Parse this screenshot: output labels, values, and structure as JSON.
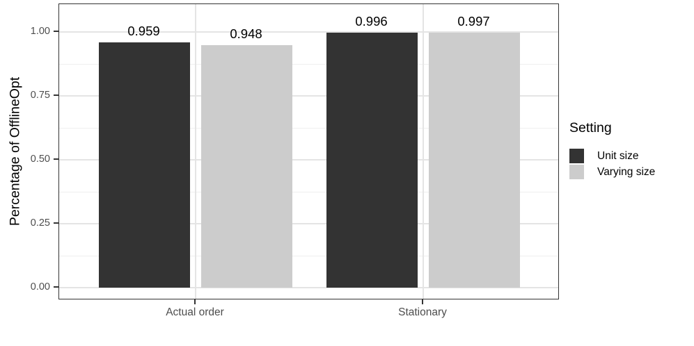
{
  "chart_data": {
    "type": "bar",
    "subtype": "grouped-vertical",
    "title": "",
    "xlabel": "",
    "ylabel": "Percentage of OfflineOpt",
    "categories": [
      "Actual order",
      "Stationary"
    ],
    "series": [
      {
        "name": "Unit size",
        "color": "#333333",
        "values": [
          0.959,
          0.996
        ],
        "value_labels": [
          "0.959",
          "0.996"
        ]
      },
      {
        "name": "Varying size",
        "color": "#cccccc",
        "values": [
          0.948,
          0.997
        ],
        "value_labels": [
          "0.948",
          "0.997"
        ]
      }
    ],
    "ylim": [
      0,
      1.05
    ],
    "yticks": [
      {
        "value": 0.0,
        "label": "0.00"
      },
      {
        "value": 0.25,
        "label": "0.25"
      },
      {
        "value": 0.5,
        "label": "0.50"
      },
      {
        "value": 0.75,
        "label": "0.75"
      },
      {
        "value": 1.0,
        "label": "1.00"
      }
    ],
    "yminor": [
      0.125,
      0.375,
      0.625,
      0.875
    ],
    "grid": "horizontal major+minor, vertical major at category centers",
    "legend_position": "right",
    "legend_title": "Setting",
    "bar_value_labels_shown": true,
    "theme": {
      "panel_border": "#333333",
      "grid_color": "#e4e4e4",
      "tick_label_color": "#4d4d4d"
    }
  }
}
